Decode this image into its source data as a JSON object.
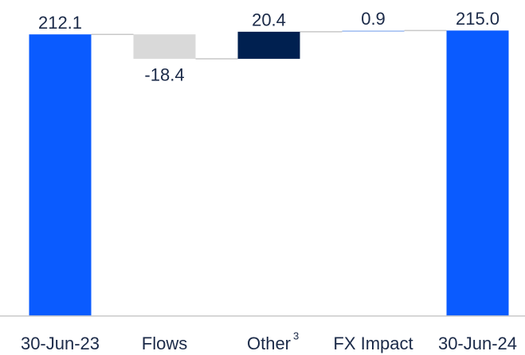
{
  "chart_data": {
    "type": "waterfall",
    "categories": [
      "30-Jun-23",
      "Flows",
      "Other",
      "FX Impact",
      "30-Jun-24"
    ],
    "category_superscripts": [
      null,
      null,
      "3",
      null,
      null
    ],
    "values": [
      212.1,
      -18.4,
      20.4,
      0.9,
      215.0
    ],
    "value_labels": [
      "212.1",
      "-18.4",
      "20.4",
      "0.9",
      "215.0"
    ],
    "colors": [
      "#0a5bff",
      "#d9d9d9",
      "#002050",
      "#9dbcf0",
      "#0a5bff"
    ],
    "ylim": [
      0,
      238
    ]
  }
}
